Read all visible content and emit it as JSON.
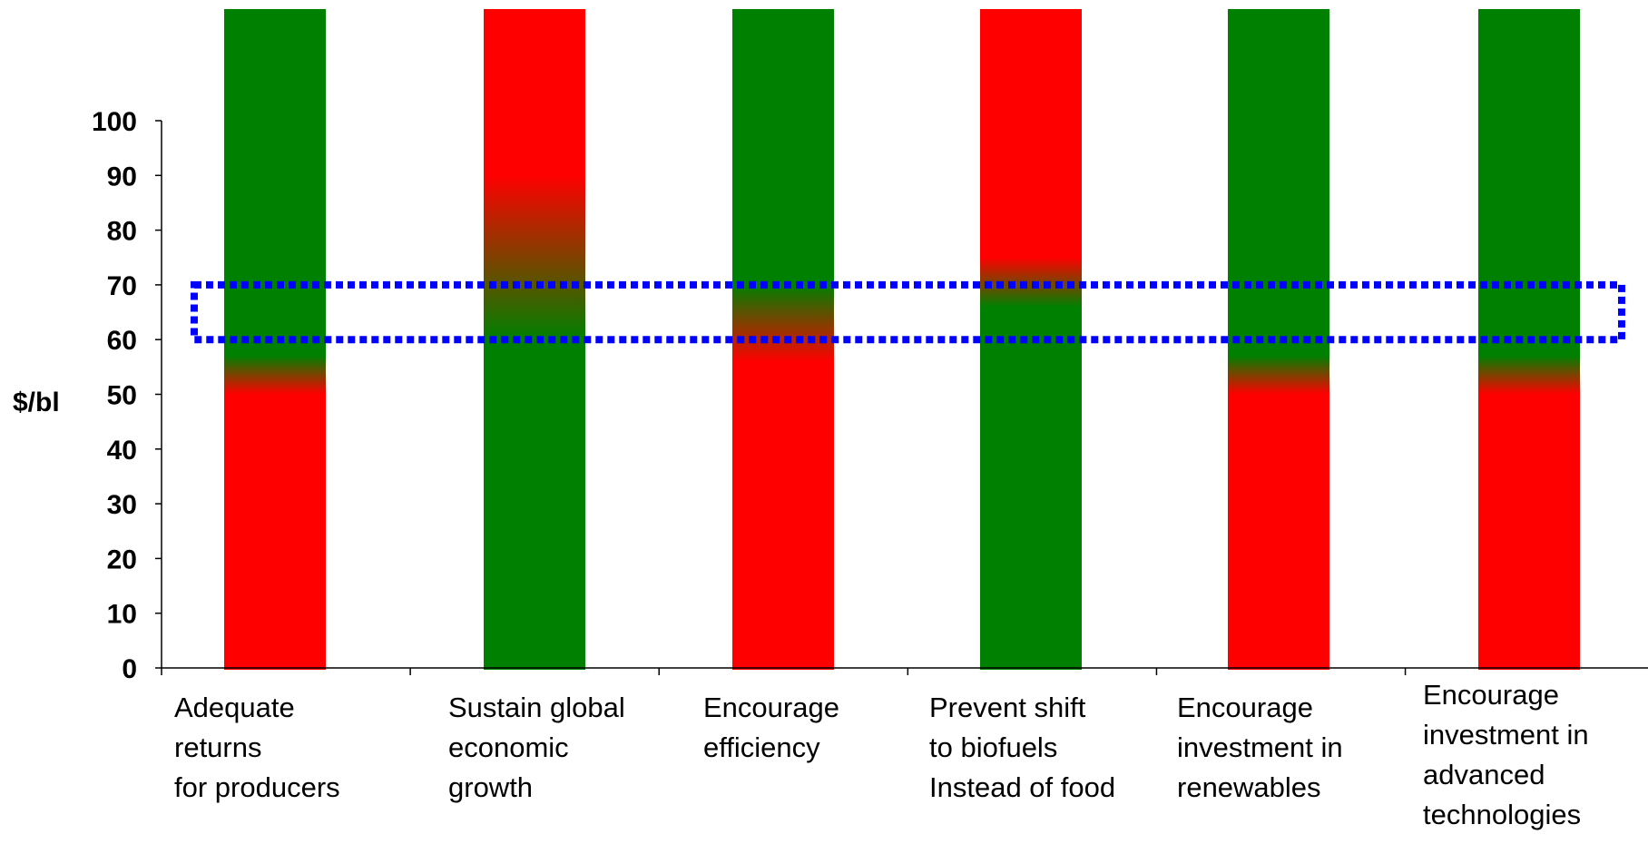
{
  "chart_data": {
    "type": "bar",
    "xlabel": "",
    "ylabel": "$/bl",
    "ylim": [
      0,
      100
    ],
    "yticks": [
      0,
      10,
      20,
      30,
      40,
      50,
      60,
      70,
      80,
      90,
      100
    ],
    "grid": false,
    "legend": "none",
    "categories": [
      {
        "lines": [
          "Adequate",
          "returns",
          "for producers"
        ]
      },
      {
        "lines": [
          "Sustain global",
          "economic",
          "growth"
        ]
      },
      {
        "lines": [
          "Encourage",
          "efficiency"
        ]
      },
      {
        "lines": [
          "Prevent shift",
          "to biofuels",
          "Instead of food"
        ]
      },
      {
        "lines": [
          "Encourage",
          "investment in",
          "renewables"
        ]
      },
      {
        "lines": [
          "Encourage",
          "investment in",
          "advanced",
          "technologies"
        ]
      }
    ],
    "bars": [
      {
        "bottom_color": "#ff0000",
        "top_color": "#008000",
        "transition_from": 50,
        "transition_to": 57,
        "top_value": 120
      },
      {
        "bottom_color": "#008000",
        "top_color": "#ff0000",
        "transition_from": 60,
        "transition_to": 90,
        "top_value": 120
      },
      {
        "bottom_color": "#ff0000",
        "top_color": "#008000",
        "transition_from": 56,
        "transition_to": 70,
        "top_value": 120
      },
      {
        "bottom_color": "#008000",
        "top_color": "#ff0000",
        "transition_from": 66,
        "transition_to": 75,
        "top_value": 120
      },
      {
        "bottom_color": "#ff0000",
        "top_color": "#008000",
        "transition_from": 50,
        "transition_to": 57,
        "top_value": 120
      },
      {
        "bottom_color": "#ff0000",
        "top_color": "#008000",
        "transition_from": 50,
        "transition_to": 57,
        "top_value": 120
      }
    ],
    "highlight_band": {
      "from": 60,
      "to": 70,
      "color": "#0000ff",
      "style": "dotted"
    }
  }
}
